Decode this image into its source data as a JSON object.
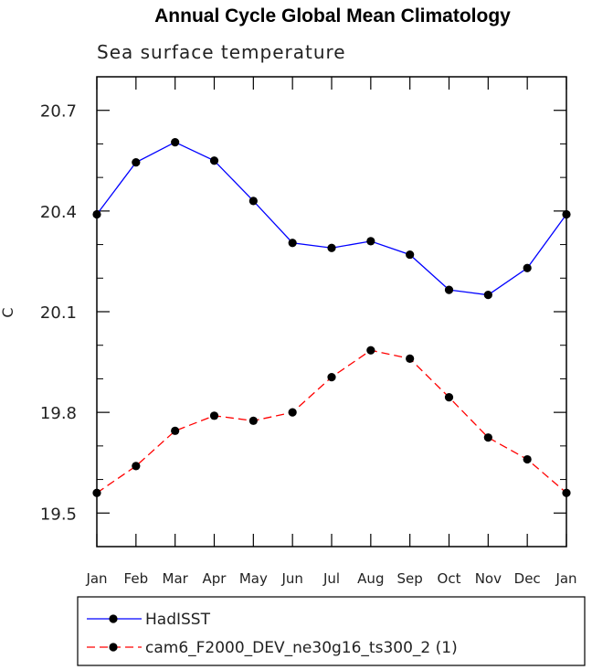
{
  "chart_data": {
    "type": "line",
    "title": "Annual Cycle Global Mean Climatology",
    "subtitle": "Sea surface temperature",
    "xlabel": "",
    "ylabel": "C",
    "categories": [
      "Jan",
      "Feb",
      "Mar",
      "Apr",
      "May",
      "Jun",
      "Jul",
      "Aug",
      "Sep",
      "Oct",
      "Nov",
      "Dec",
      "Jan"
    ],
    "ylim": [
      19.4,
      20.8
    ],
    "yticks": [
      19.5,
      19.8,
      20.1,
      20.4,
      20.7
    ],
    "ytick_labels": [
      "19.5",
      "19.8",
      "20.1",
      "20.4",
      "20.7"
    ],
    "grid": false,
    "legend_position": "bottom",
    "series": [
      {
        "name": "HadISST",
        "color": "#0000ff",
        "style": "solid",
        "marker": "circle",
        "values": [
          20.39,
          20.545,
          20.605,
          20.55,
          20.43,
          20.305,
          20.29,
          20.31,
          20.27,
          20.165,
          20.15,
          20.23,
          20.39
        ]
      },
      {
        "name": "cam6_F2000_DEV_ne30g16_ts300_2 (1)",
        "color": "#ff0000",
        "style": "dashed",
        "marker": "circle",
        "values": [
          19.56,
          19.64,
          19.745,
          19.79,
          19.775,
          19.8,
          19.905,
          19.985,
          19.96,
          19.845,
          19.725,
          19.66,
          19.56
        ]
      }
    ]
  }
}
